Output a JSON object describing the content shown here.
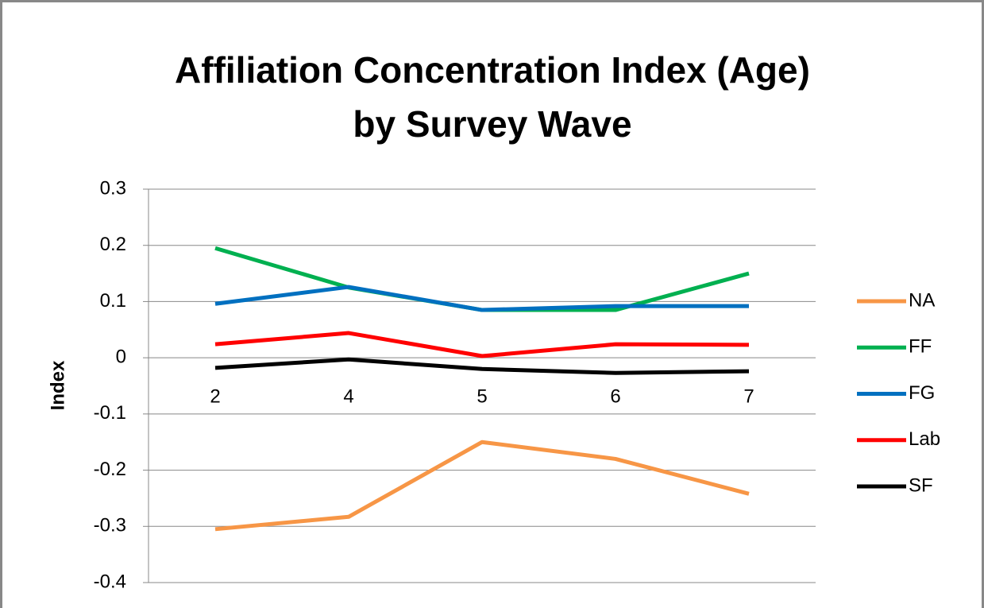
{
  "chart_data": {
    "type": "line",
    "title": [
      "Affiliation Concentration Index (Age)",
      "by Survey Wave"
    ],
    "y_label": "Index",
    "categories": [
      "2",
      "4",
      "5",
      "6",
      "7"
    ],
    "series": [
      {
        "name": "NA",
        "color": "#f79646",
        "values": [
          -0.305,
          -0.283,
          -0.15,
          -0.18,
          -0.242
        ]
      },
      {
        "name": "FF",
        "color": "#00b050",
        "values": [
          0.195,
          0.125,
          0.085,
          0.085,
          0.15
        ]
      },
      {
        "name": "FG",
        "color": "#0070c0",
        "values": [
          0.096,
          0.126,
          0.085,
          0.092,
          0.092
        ]
      },
      {
        "name": "Lab",
        "color": "#ff0000",
        "values": [
          0.024,
          0.044,
          0.003,
          0.024,
          0.023
        ]
      },
      {
        "name": "SF",
        "color": "#000000",
        "values": [
          -0.018,
          -0.003,
          -0.02,
          -0.027,
          -0.024
        ]
      }
    ],
    "ylim": [
      -0.4,
      0.3
    ],
    "yticks": [
      -0.4,
      -0.3,
      -0.2,
      -0.1,
      0,
      0.1,
      0.2,
      0.3
    ],
    "grid": true,
    "legend": "right"
  }
}
